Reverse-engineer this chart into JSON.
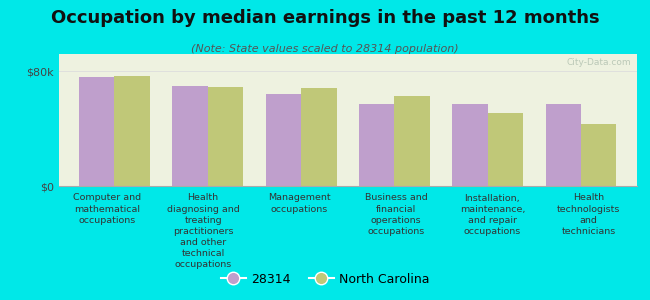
{
  "title": "Occupation by median earnings in the past 12 months",
  "subtitle": "(Note: State values scaled to 28314 population)",
  "background_color": "#00e8e8",
  "plot_bg_color": "#eef2e0",
  "ylim": [
    0,
    92000
  ],
  "ytick_vals": [
    0,
    80000
  ],
  "ytick_labels": [
    "$0",
    "$80k"
  ],
  "bar_width": 0.38,
  "categories": [
    "Computer and\nmathematical\noccupations",
    "Health\ndiagnosing and\ntreating\npractitioners\nand other\ntechnical\noccupations",
    "Management\noccupations",
    "Business and\nfinancial\noperations\noccupations",
    "Installation,\nmaintenance,\nand repair\noccupations",
    "Health\ntechnologists\nand\ntechnicians"
  ],
  "values_28314": [
    76000,
    70000,
    64000,
    57000,
    57000,
    57000
  ],
  "values_nc": [
    77000,
    69000,
    68000,
    63000,
    51000,
    43000
  ],
  "color_28314": "#bf9fcc",
  "color_nc": "#c0c878",
  "legend_28314": "28314",
  "legend_nc": "North Carolina",
  "watermark": "City-Data.com",
  "title_fontsize": 13,
  "subtitle_fontsize": 8,
  "xlabel_fontsize": 6.8,
  "ytick_fontsize": 8
}
